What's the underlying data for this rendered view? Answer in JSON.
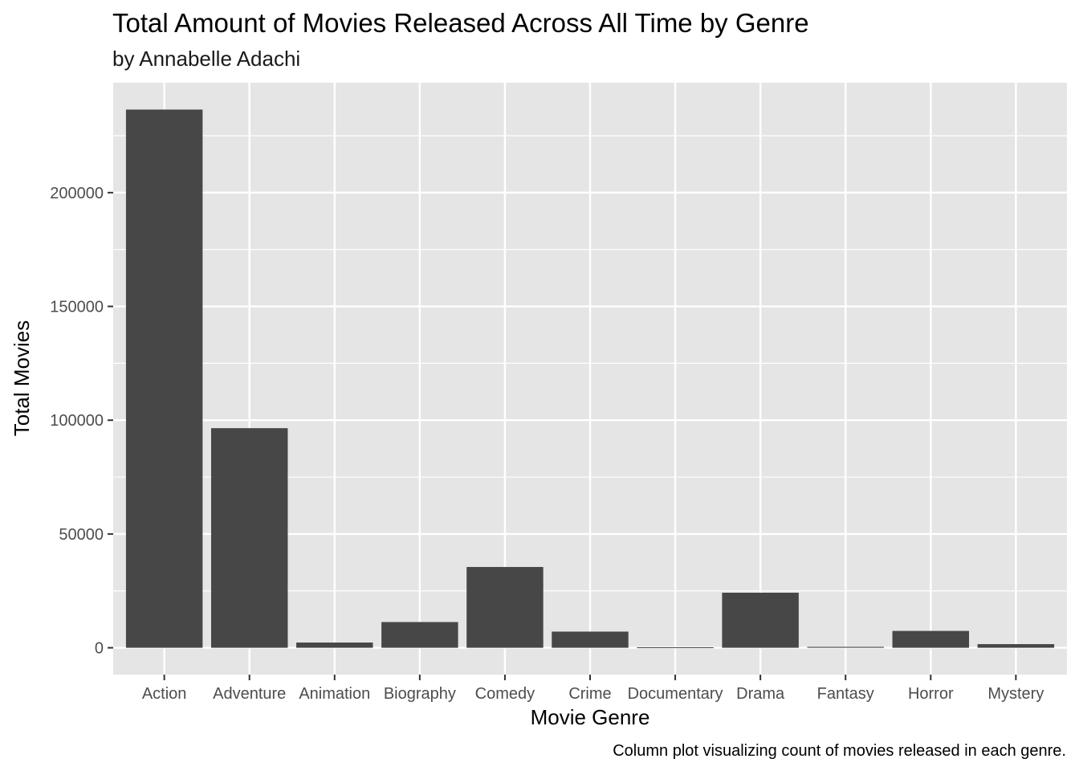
{
  "chart_data": {
    "type": "bar",
    "title": "Total Amount of Movies Released Across All Time by Genre",
    "subtitle": "by Annabelle Adachi",
    "xlabel": "Movie Genre",
    "ylabel": "Total Movies",
    "caption": "Column plot visualizing count of movies released in each genre.",
    "categories": [
      "Action",
      "Adventure",
      "Animation",
      "Biography",
      "Comedy",
      "Crime",
      "Documentary",
      "Drama",
      "Fantasy",
      "Horror",
      "Mystery"
    ],
    "values": [
      236500,
      96500,
      2300,
      11300,
      35500,
      7100,
      200,
      24200,
      400,
      7400,
      1600
    ],
    "yticks": [
      0,
      50000,
      100000,
      150000,
      200000
    ],
    "ylim": [
      -11800,
      248300
    ],
    "grid": true,
    "legend": "none",
    "colors": {
      "bar": "#474747",
      "panel": "#e5e5e5",
      "grid": "#ffffff"
    }
  }
}
